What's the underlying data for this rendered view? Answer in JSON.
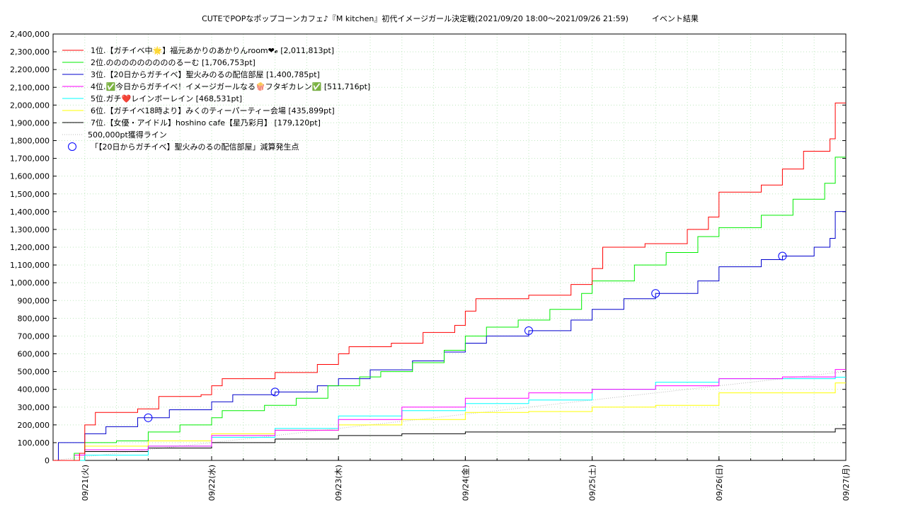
{
  "chart_data": {
    "type": "line",
    "title": "CUTEでPOPなポップコーンカフェ♪『M kitchen』初代イメージガール決定戦(2021/09/20 18:00～2021/09/26 21:59)　　　イベント結果",
    "xlabel": "",
    "ylabel": "",
    "x_start": "2021/09/20 18:00",
    "x_end": "2021/09/27 00:00",
    "ylim": [
      0,
      2400000
    ],
    "y_ticks": [
      {
        "v": 0,
        "label": "0"
      },
      {
        "v": 100000,
        "label": "100,000"
      },
      {
        "v": 200000,
        "label": "200,000"
      },
      {
        "v": 300000,
        "label": "300,000"
      },
      {
        "v": 400000,
        "label": "400,000"
      },
      {
        "v": 500000,
        "label": "500,000"
      },
      {
        "v": 600000,
        "label": "600,000"
      },
      {
        "v": 700000,
        "label": "700,000"
      },
      {
        "v": 800000,
        "label": "800,000"
      },
      {
        "v": 900000,
        "label": "900,000"
      },
      {
        "v": 1000000,
        "label": "1,000,000"
      },
      {
        "v": 1100000,
        "label": "1,100,000"
      },
      {
        "v": 1200000,
        "label": "1,200,000"
      },
      {
        "v": 1300000,
        "label": "1,300,000"
      },
      {
        "v": 1400000,
        "label": "1,400,000"
      },
      {
        "v": 1500000,
        "label": "1,500,000"
      },
      {
        "v": 1600000,
        "label": "1,600,000"
      },
      {
        "v": 1700000,
        "label": "1,700,000"
      },
      {
        "v": 1800000,
        "label": "1,800,000"
      },
      {
        "v": 1900000,
        "label": "1,900,000"
      },
      {
        "v": 2000000,
        "label": "2,000,000"
      },
      {
        "v": 2100000,
        "label": "2,100,000"
      },
      {
        "v": 2200000,
        "label": "2,200,000"
      },
      {
        "v": 2300000,
        "label": "2,300,000"
      },
      {
        "v": 2400000,
        "label": "2,400,000"
      }
    ],
    "x_ticks": [
      {
        "t": "2021/09/21 00:00",
        "label": "09/21(火)"
      },
      {
        "t": "2021/09/22 00:00",
        "label": "09/22(水)"
      },
      {
        "t": "2021/09/23 00:00",
        "label": "09/23(木)"
      },
      {
        "t": "2021/09/24 00:00",
        "label": "09/24(金)"
      },
      {
        "t": "2021/09/25 00:00",
        "label": "09/25(土)"
      },
      {
        "t": "2021/09/26 00:00",
        "label": "09/26(日)"
      },
      {
        "t": "2021/09/27 00:00",
        "label": "09/27(月)"
      }
    ],
    "grid": true,
    "legend_position": "top-left",
    "series": [
      {
        "name": "1位.【ガチイベ中🌟】福元あかりのあかりんroom❤︎𝓮 [2,011,813pt]",
        "color": "#ff0000",
        "points": [
          [
            "2021/09/20 18:00",
            0
          ],
          [
            "2021/09/20 23:00",
            40000
          ],
          [
            "2021/09/21 00:00",
            200000
          ],
          [
            "2021/09/21 02:00",
            270000
          ],
          [
            "2021/09/21 10:00",
            290000
          ],
          [
            "2021/09/21 14:00",
            360000
          ],
          [
            "2021/09/21 22:00",
            370000
          ],
          [
            "2021/09/22 00:00",
            420000
          ],
          [
            "2021/09/22 02:00",
            460000
          ],
          [
            "2021/09/22 12:00",
            495000
          ],
          [
            "2021/09/22 20:00",
            540000
          ],
          [
            "2021/09/23 00:00",
            600000
          ],
          [
            "2021/09/23 02:00",
            640000
          ],
          [
            "2021/09/23 10:00",
            660000
          ],
          [
            "2021/09/23 16:00",
            720000
          ],
          [
            "2021/09/23 22:00",
            760000
          ],
          [
            "2021/09/24 00:00",
            840000
          ],
          [
            "2021/09/24 02:00",
            910000
          ],
          [
            "2021/09/24 12:00",
            930000
          ],
          [
            "2021/09/24 20:00",
            990000
          ],
          [
            "2021/09/25 00:00",
            1080000
          ],
          [
            "2021/09/25 02:00",
            1200000
          ],
          [
            "2021/09/25 10:00",
            1220000
          ],
          [
            "2021/09/25 18:00",
            1300000
          ],
          [
            "2021/09/25 22:00",
            1370000
          ],
          [
            "2021/09/26 00:00",
            1510000
          ],
          [
            "2021/09/26 08:00",
            1550000
          ],
          [
            "2021/09/26 12:00",
            1640000
          ],
          [
            "2021/09/26 16:00",
            1740000
          ],
          [
            "2021/09/26 21:00",
            1810000
          ],
          [
            "2021/09/26 22:00",
            2011813
          ],
          [
            "2021/09/27 00:00",
            2011813
          ]
        ]
      },
      {
        "name": "2位.のののののののののるーむ [1,706,753pt]",
        "color": "#00ee00",
        "points": [
          [
            "2021/09/20 18:00",
            0
          ],
          [
            "2021/09/20 22:00",
            40000
          ],
          [
            "2021/09/21 00:00",
            100000
          ],
          [
            "2021/09/21 06:00",
            110000
          ],
          [
            "2021/09/21 12:00",
            160000
          ],
          [
            "2021/09/21 18:00",
            200000
          ],
          [
            "2021/09/22 00:00",
            240000
          ],
          [
            "2021/09/22 02:00",
            280000
          ],
          [
            "2021/09/22 10:00",
            310000
          ],
          [
            "2021/09/22 16:00",
            350000
          ],
          [
            "2021/09/22 22:00",
            420000
          ],
          [
            "2021/09/23 04:00",
            470000
          ],
          [
            "2021/09/23 08:00",
            500000
          ],
          [
            "2021/09/23 14:00",
            550000
          ],
          [
            "2021/09/23 20:00",
            620000
          ],
          [
            "2021/09/24 00:00",
            700000
          ],
          [
            "2021/09/24 04:00",
            750000
          ],
          [
            "2021/09/24 10:00",
            790000
          ],
          [
            "2021/09/24 16:00",
            850000
          ],
          [
            "2021/09/24 22:00",
            940000
          ],
          [
            "2021/09/25 00:00",
            1010000
          ],
          [
            "2021/09/25 08:00",
            1100000
          ],
          [
            "2021/09/25 14:00",
            1170000
          ],
          [
            "2021/09/25 20:00",
            1260000
          ],
          [
            "2021/09/26 00:00",
            1310000
          ],
          [
            "2021/09/26 08:00",
            1380000
          ],
          [
            "2021/09/26 14:00",
            1470000
          ],
          [
            "2021/09/26 20:00",
            1560000
          ],
          [
            "2021/09/26 22:00",
            1706753
          ],
          [
            "2021/09/27 00:00",
            1706753
          ]
        ]
      },
      {
        "name": "3位.【20日からガチイベ】聖火みのるの配信部屋 [1,400,785pt]",
        "color": "#0000cc",
        "points": [
          [
            "2021/09/20 18:00",
            0
          ],
          [
            "2021/09/20 19:00",
            100000
          ],
          [
            "2021/09/21 00:00",
            150000
          ],
          [
            "2021/09/21 04:00",
            190000
          ],
          [
            "2021/09/21 10:00",
            240000
          ],
          [
            "2021/09/21 16:00",
            285000
          ],
          [
            "2021/09/22 00:00",
            330000
          ],
          [
            "2021/09/22 04:00",
            370000
          ],
          [
            "2021/09/22 12:00",
            385000
          ],
          [
            "2021/09/22 20:00",
            420000
          ],
          [
            "2021/09/23 00:00",
            460000
          ],
          [
            "2021/09/23 06:00",
            510000
          ],
          [
            "2021/09/23 14:00",
            560000
          ],
          [
            "2021/09/23 20:00",
            610000
          ],
          [
            "2021/09/24 00:00",
            660000
          ],
          [
            "2021/09/24 04:00",
            700000
          ],
          [
            "2021/09/24 12:00",
            730000
          ],
          [
            "2021/09/24 20:00",
            790000
          ],
          [
            "2021/09/25 00:00",
            850000
          ],
          [
            "2021/09/25 06:00",
            910000
          ],
          [
            "2021/09/25 12:00",
            940000
          ],
          [
            "2021/09/25 20:00",
            1010000
          ],
          [
            "2021/09/26 00:00",
            1090000
          ],
          [
            "2021/09/26 08:00",
            1130000
          ],
          [
            "2021/09/26 12:00",
            1150000
          ],
          [
            "2021/09/26 18:00",
            1200000
          ],
          [
            "2021/09/26 21:00",
            1250000
          ],
          [
            "2021/09/26 22:00",
            1400785
          ],
          [
            "2021/09/27 00:00",
            1400785
          ]
        ]
      },
      {
        "name": "4位.✅今日からガチイベ！イメージガールなる🍿フタギカレン✅ [511,716pt]",
        "color": "#ff00ff",
        "points": [
          [
            "2021/09/20 18:00",
            0
          ],
          [
            "2021/09/20 22:00",
            30000
          ],
          [
            "2021/09/21 00:00",
            60000
          ],
          [
            "2021/09/21 12:00",
            80000
          ],
          [
            "2021/09/22 00:00",
            140000
          ],
          [
            "2021/09/22 12:00",
            170000
          ],
          [
            "2021/09/23 00:00",
            230000
          ],
          [
            "2021/09/23 12:00",
            300000
          ],
          [
            "2021/09/24 00:00",
            350000
          ],
          [
            "2021/09/24 12:00",
            380000
          ],
          [
            "2021/09/25 00:00",
            400000
          ],
          [
            "2021/09/25 12:00",
            420000
          ],
          [
            "2021/09/26 00:00",
            460000
          ],
          [
            "2021/09/26 12:00",
            470000
          ],
          [
            "2021/09/26 22:00",
            511716
          ],
          [
            "2021/09/27 00:00",
            511716
          ]
        ]
      },
      {
        "name": "5位.ガチ❤️レインボーレイン [468,531pt]",
        "color": "#00ffff",
        "points": [
          [
            "2021/09/20 18:00",
            0
          ],
          [
            "2021/09/21 00:00",
            30000
          ],
          [
            "2021/09/21 12:00",
            80000
          ],
          [
            "2021/09/22 00:00",
            130000
          ],
          [
            "2021/09/22 12:00",
            180000
          ],
          [
            "2021/09/23 00:00",
            250000
          ],
          [
            "2021/09/23 12:00",
            280000
          ],
          [
            "2021/09/24 00:00",
            320000
          ],
          [
            "2021/09/24 12:00",
            340000
          ],
          [
            "2021/09/25 00:00",
            400000
          ],
          [
            "2021/09/25 12:00",
            440000
          ],
          [
            "2021/09/26 00:00",
            460000
          ],
          [
            "2021/09/26 12:00",
            460000
          ],
          [
            "2021/09/26 22:00",
            468531
          ],
          [
            "2021/09/27 00:00",
            468531
          ]
        ]
      },
      {
        "name": "6位.【ガチイベ18時より】みくのティーパーティー会場 [435,899pt]",
        "color": "#ffff00",
        "points": [
          [
            "2021/09/20 18:00",
            0
          ],
          [
            "2021/09/21 00:00",
            80000
          ],
          [
            "2021/09/21 12:00",
            110000
          ],
          [
            "2021/09/22 00:00",
            150000
          ],
          [
            "2021/09/22 12:00",
            170000
          ],
          [
            "2021/09/23 00:00",
            200000
          ],
          [
            "2021/09/23 12:00",
            230000
          ],
          [
            "2021/09/24 00:00",
            270000
          ],
          [
            "2021/09/24 12:00",
            275000
          ],
          [
            "2021/09/25 00:00",
            300000
          ],
          [
            "2021/09/25 12:00",
            310000
          ],
          [
            "2021/09/26 00:00",
            380000
          ],
          [
            "2021/09/26 12:00",
            380000
          ],
          [
            "2021/09/26 22:00",
            435899
          ],
          [
            "2021/09/27 00:00",
            435899
          ]
        ]
      },
      {
        "name": "7位.【女優・アイドル】hoshino cafe【星乃彩月】 [179,120pt]",
        "color": "#000000",
        "points": [
          [
            "2021/09/20 18:00",
            0
          ],
          [
            "2021/09/21 00:00",
            50000
          ],
          [
            "2021/09/21 12:00",
            70000
          ],
          [
            "2021/09/22 00:00",
            100000
          ],
          [
            "2021/09/22 12:00",
            120000
          ],
          [
            "2021/09/23 00:00",
            140000
          ],
          [
            "2021/09/23 12:00",
            150000
          ],
          [
            "2021/09/24 00:00",
            160000
          ],
          [
            "2021/09/25 00:00",
            160000
          ],
          [
            "2021/09/26 00:00",
            160000
          ],
          [
            "2021/09/26 22:00",
            179120
          ],
          [
            "2021/09/27 00:00",
            179120
          ]
        ]
      }
    ],
    "reference_line": {
      "name": "500,000pt獲得ライン",
      "color": "#bbbbbb",
      "points": [
        [
          "2021/09/20 18:00",
          0
        ],
        [
          "2021/09/27 00:00",
          500000
        ]
      ]
    },
    "markers": {
      "name": "「【20日からガチイベ】聖火みのるの配信部屋」減算発生点",
      "color": "#0000ff",
      "points": [
        [
          "2021/09/21 12:00",
          240000
        ],
        [
          "2021/09/22 12:00",
          385000
        ],
        [
          "2021/09/24 12:00",
          730000
        ],
        [
          "2021/09/25 12:00",
          940000
        ],
        [
          "2021/09/26 12:00",
          1150000
        ]
      ]
    }
  }
}
